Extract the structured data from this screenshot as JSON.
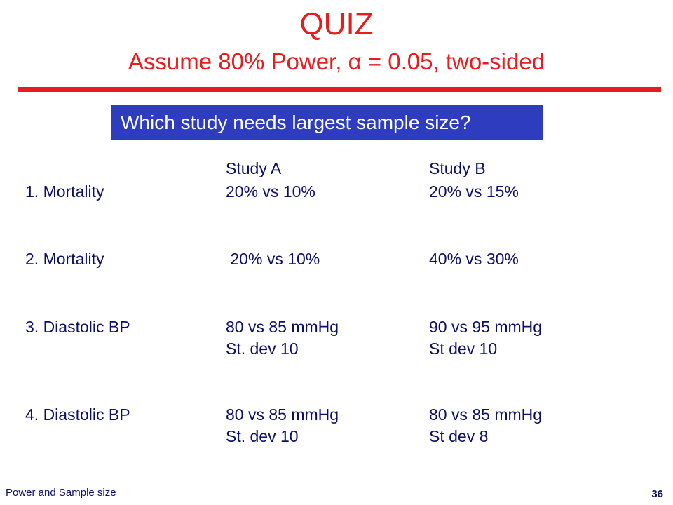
{
  "slide": {
    "title": "QUIZ",
    "subtitle": "Assume 80% Power, α = 0.05, two-sided",
    "question": "Which study needs largest sample size?",
    "headers": {
      "study_a": "Study A",
      "study_b": "Study B"
    },
    "rows": [
      {
        "label": "1.  Mortality",
        "a1": "20% vs 10%",
        "b1": "20% vs 15%",
        "a2": "",
        "b2": ""
      },
      {
        "label": "2.  Mortality",
        "a1": " 20% vs 10%",
        "b1": "40% vs 30%",
        "a2": "",
        "b2": ""
      },
      {
        "label": "3. Diastolic BP",
        "a1": "80 vs 85 mmHg",
        "b1": "90 vs 95 mmHg",
        "a2": "St. dev 10",
        "b2": "St dev 10"
      },
      {
        "label": "4. Diastolic BP",
        "a1": "80 vs 85 mmHg",
        "b1": "80 vs 85 mmHg",
        "a2": "St. dev 10",
        "b2": "St dev 8"
      }
    ],
    "footer": "Power and Sample size",
    "page_number": "36",
    "colors": {
      "title": "#e41e1e",
      "question_bg": "#2e3dbf",
      "text": "#0b0f66"
    }
  }
}
